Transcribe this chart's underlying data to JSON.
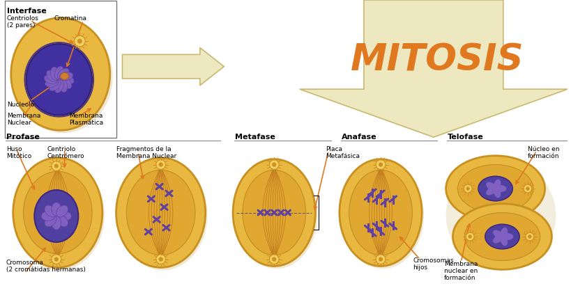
{
  "title": "MITOSIS",
  "bg_color": "#ffffff",
  "arrow_fill": "#ede8c0",
  "arrow_edge": "#c8b870",
  "cell_fill": "#e8b840",
  "cell_edge": "#c89020",
  "nucleus_fill_dark": "#5040a0",
  "nucleus_fill_med": "#7050a8",
  "chrom_fill": "#9070c0",
  "chrom_color": "#6040a0",
  "orange": "#e07820",
  "black": "#000000",
  "gray": "#888888",
  "centriole_fill": "#f0d060",
  "centriole_edge": "#d09020",
  "spindle_color": "#c07820",
  "mitosis_color": "#e07820",
  "section_labels": {
    "interfase": "Interfase",
    "profase": "Profase",
    "metafase": "Metafase",
    "anafase": "Anafase",
    "telofase": "Telofase"
  }
}
